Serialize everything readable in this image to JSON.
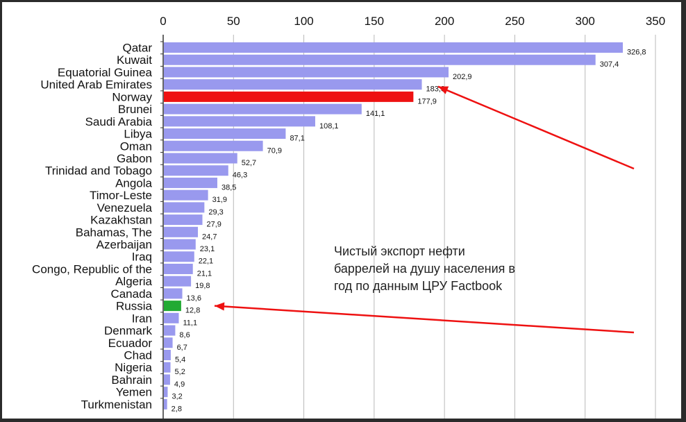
{
  "chart_data": {
    "type": "bar",
    "orientation": "horizontal",
    "x_ticks": [
      0,
      50,
      100,
      150,
      200,
      250,
      300,
      350
    ],
    "xlim": [
      0,
      350
    ],
    "grid": true,
    "categories": [
      "Qatar",
      "Kuwait",
      "Equatorial Guinea",
      "United Arab Emirates",
      "Norway",
      "Brunei",
      "Saudi Arabia",
      "Libya",
      "Oman",
      "Gabon",
      "Trinidad and Tobago",
      "Angola",
      "Timor-Leste",
      "Venezuela",
      "Kazakhstan",
      "Bahamas, The",
      "Azerbaijan",
      "Iraq",
      "Congo, Republic of the",
      "Algeria",
      "Canada",
      "Russia",
      "Iran",
      "Denmark",
      "Ecuador",
      "Chad",
      "Nigeria",
      "Bahrain",
      "Yemen",
      "Turkmenistan"
    ],
    "values": [
      326.8,
      307.4,
      202.9,
      183.9,
      177.9,
      141.1,
      108.1,
      87.1,
      70.9,
      52.7,
      46.3,
      38.5,
      31.9,
      29.3,
      27.9,
      24.7,
      23.1,
      22.1,
      21.1,
      19.8,
      13.6,
      12.8,
      11.1,
      8.6,
      6.7,
      5.4,
      5.2,
      4.9,
      3.2,
      2.8
    ],
    "value_labels": [
      "326,8",
      "307,4",
      "202,9",
      "183,9",
      "177,9",
      "141,1",
      "108,1",
      "87,1",
      "70,9",
      "52,7",
      "46,3",
      "38,5",
      "31,9",
      "29,3",
      "27,9",
      "24,7",
      "23,1",
      "22,1",
      "21,1",
      "19,8",
      "13,6",
      "12,8",
      "11,1",
      "8,6",
      "6,7",
      "5,4",
      "5,2",
      "4,9",
      "3,2",
      "2,8"
    ],
    "highlight": {
      "Norway": "#ee1111",
      "Russia": "#22aa33"
    },
    "bar_color": "#9999ee",
    "arrow_color": "#ee1111",
    "arrow_targets": [
      "United Arab Emirates",
      "Russia"
    ]
  },
  "caption": {
    "line1": "Чистый экспорт нефти",
    "line2": "баррелей на душу населения в",
    "line3": "год по данным ЦРУ Factbook"
  }
}
